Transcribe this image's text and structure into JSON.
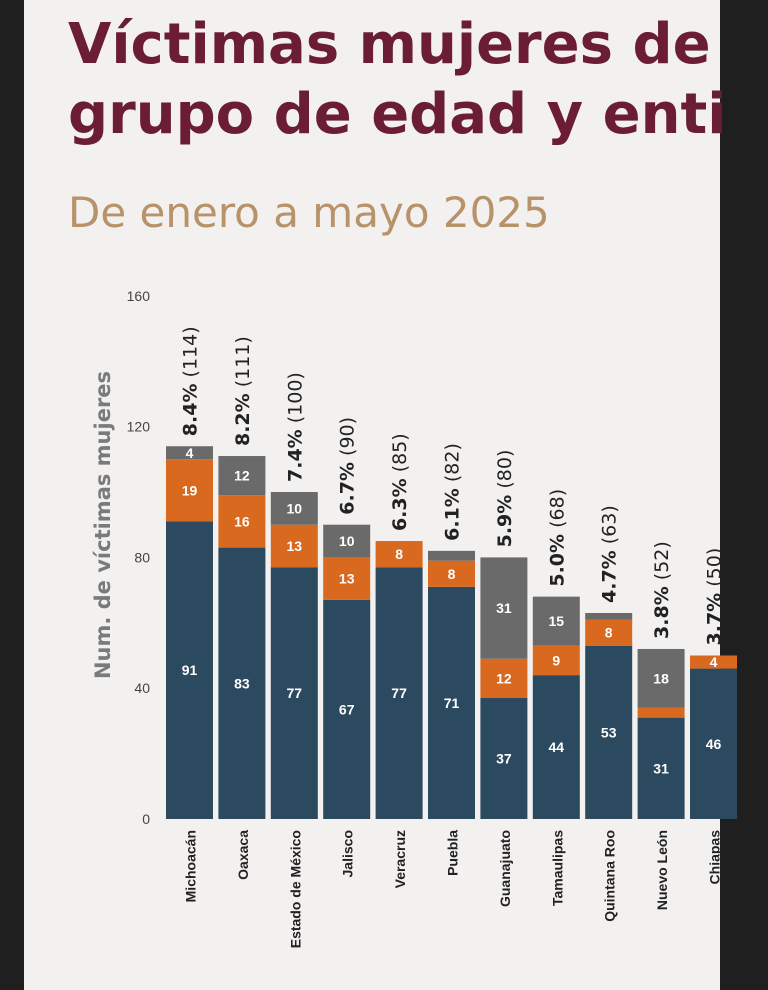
{
  "header": {
    "title_line1": "Víctimas mujeres de",
    "title_line2": "grupo de edad y enti",
    "subtitle": "De enero a mayo 2025"
  },
  "colors": {
    "series_1": "#2b4a5f",
    "series_2": "#d8691f",
    "series_3": "#6a6a6a",
    "title": "#6b1d35",
    "subtitle": "#b89269"
  },
  "chart_data": {
    "type": "bar",
    "stacked": true,
    "ylabel": "Num. de víctimas mujeres",
    "ylim": [
      0,
      160
    ],
    "yticks": [
      0,
      40,
      80,
      120,
      160
    ],
    "grid": false,
    "categories": [
      "Michoacán",
      "Oaxaca",
      "Estado de México",
      "Jalisco",
      "Veracruz",
      "Puebla",
      "Guanajuato",
      "Tamaulipas",
      "Quintana Roo",
      "Nuevo León",
      "Chiapas"
    ],
    "series": [
      {
        "values": [
          91,
          83,
          77,
          67,
          77,
          71,
          37,
          44,
          53,
          31,
          46
        ],
        "labels": [
          "91",
          "83",
          "77",
          "67",
          "77",
          "71",
          "37",
          "44",
          "53",
          "31",
          "46"
        ]
      },
      {
        "values": [
          19,
          16,
          13,
          13,
          8,
          8,
          12,
          9,
          8,
          3,
          4
        ],
        "labels": [
          "19",
          "16",
          "13",
          "13",
          "8",
          "8",
          "12",
          "9",
          "8",
          "",
          "4"
        ]
      },
      {
        "values": [
          4,
          12,
          10,
          10,
          0,
          3,
          31,
          15,
          2,
          18,
          0
        ],
        "labels": [
          "4",
          "12",
          "10",
          "10",
          "",
          "",
          "31",
          "15",
          "",
          "18",
          ""
        ]
      }
    ],
    "totals": [
      114,
      111,
      100,
      90,
      85,
      82,
      80,
      68,
      63,
      52,
      50
    ],
    "total_pct_labels": [
      "8.4%",
      "8.2%",
      "7.4%",
      "6.7%",
      "6.3%",
      "6.1%",
      "5.9%",
      "5.0%",
      "4.7%",
      "3.8%",
      "3.7%"
    ],
    "total_count_labels": [
      "(114)",
      "(111)",
      "(100)",
      "(90)",
      "(85)",
      "(82)",
      "(80)",
      "(68)",
      "(63)",
      "(52)",
      "(50)"
    ]
  }
}
